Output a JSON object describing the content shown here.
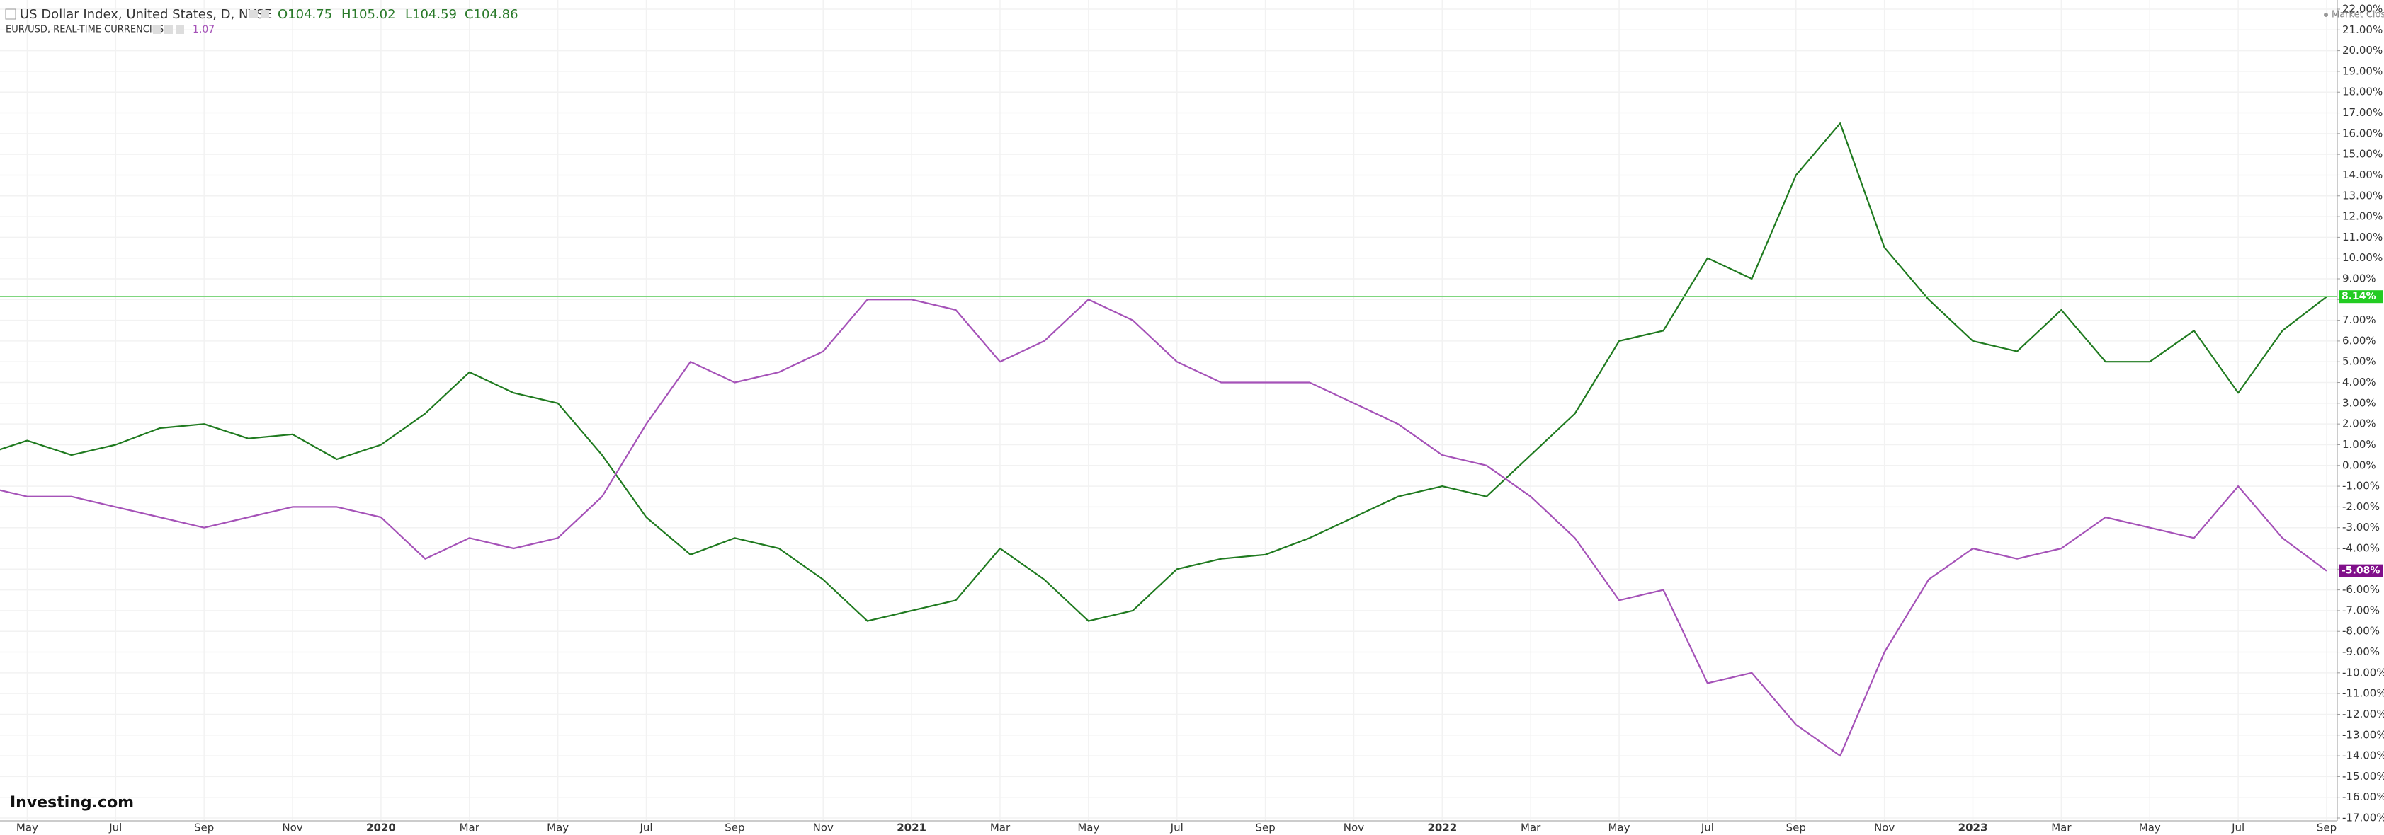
{
  "chart_data": {
    "type": "line",
    "title": "US Dollar Index, United States, D, NYSE",
    "ohlc": [
      "O104.75",
      "H105.02",
      "L104.59",
      "C104.86"
    ],
    "compare_title": "EUR/USD, REAL-TIME CURRENCIES",
    "compare_last": "1.07",
    "status": "Market Closed",
    "logo": "Investing.com",
    "x": [
      "2019-04",
      "2019-05",
      "2019-06",
      "2019-07",
      "2019-08",
      "2019-09",
      "2019-10",
      "2019-11",
      "2019-12",
      "2020-01",
      "2020-02",
      "2020-03",
      "2020-04",
      "2020-05",
      "2020-06",
      "2020-07",
      "2020-08",
      "2020-09",
      "2020-10",
      "2020-11",
      "2020-12",
      "2021-01",
      "2021-02",
      "2021-03",
      "2021-04",
      "2021-05",
      "2021-06",
      "2021-07",
      "2021-08",
      "2021-09",
      "2021-10",
      "2021-11",
      "2021-12",
      "2022-01",
      "2022-02",
      "2022-03",
      "2022-04",
      "2022-05",
      "2022-06",
      "2022-07",
      "2022-08",
      "2022-09",
      "2022-10",
      "2022-11",
      "2022-12",
      "2023-01",
      "2023-02",
      "2023-03",
      "2023-04",
      "2023-05",
      "2023-06",
      "2023-07",
      "2023-08",
      "2023-09"
    ],
    "series": [
      {
        "name": "US Dollar Index",
        "color": "#1f7a1f",
        "last_label": "8.14%",
        "values": [
          0.5,
          1.2,
          0.5,
          1.0,
          1.8,
          2.0,
          1.3,
          1.5,
          0.3,
          1.0,
          2.5,
          4.5,
          3.5,
          3.0,
          0.5,
          -2.5,
          -4.3,
          -3.5,
          -4.0,
          -5.5,
          -7.5,
          -7.0,
          -6.5,
          -4.0,
          -5.5,
          -7.5,
          -7.0,
          -5.0,
          -4.5,
          -4.3,
          -3.5,
          -2.5,
          -1.5,
          -1.0,
          -1.5,
          0.5,
          2.5,
          6.0,
          6.5,
          10.0,
          9.0,
          14.0,
          16.5,
          10.5,
          8.0,
          6.0,
          5.5,
          7.5,
          5.0,
          5.0,
          6.5,
          3.5,
          6.5,
          8.14
        ]
      },
      {
        "name": "EUR/USD",
        "color": "#a552b8",
        "last_label": "-5.08%",
        "values": [
          -1.0,
          -1.5,
          -1.5,
          -2.0,
          -2.5,
          -3.0,
          -2.5,
          -2.0,
          -2.0,
          -2.5,
          -4.5,
          -3.5,
          -4.0,
          -3.5,
          -1.5,
          2.0,
          5.0,
          4.0,
          4.5,
          5.5,
          8.0,
          8.0,
          7.5,
          5.0,
          6.0,
          8.0,
          7.0,
          5.0,
          4.0,
          4.0,
          4.0,
          3.0,
          2.0,
          0.5,
          0.0,
          -1.5,
          -3.5,
          -6.5,
          -6.0,
          -10.5,
          -10.0,
          -12.5,
          -14.0,
          -9.0,
          -5.5,
          -4.0,
          -4.5,
          -4.0,
          -2.5,
          -3.0,
          -3.5,
          -1.0,
          -3.5,
          -5.08
        ]
      }
    ],
    "xlim": [
      "2019-04",
      "2023-09"
    ],
    "xticks": [
      {
        "value": "2019-05",
        "label": "May"
      },
      {
        "value": "2019-07",
        "label": "Jul"
      },
      {
        "value": "2019-09",
        "label": "Sep"
      },
      {
        "value": "2019-11",
        "label": "Nov"
      },
      {
        "value": "2020-01",
        "label": "2020"
      },
      {
        "value": "2020-03",
        "label": "Mar"
      },
      {
        "value": "2020-05",
        "label": "May"
      },
      {
        "value": "2020-07",
        "label": "Jul"
      },
      {
        "value": "2020-09",
        "label": "Sep"
      },
      {
        "value": "2020-11",
        "label": "Nov"
      },
      {
        "value": "2021-01",
        "label": "2021"
      },
      {
        "value": "2021-03",
        "label": "Mar"
      },
      {
        "value": "2021-05",
        "label": "May"
      },
      {
        "value": "2021-07",
        "label": "Jul"
      },
      {
        "value": "2021-09",
        "label": "Sep"
      },
      {
        "value": "2021-11",
        "label": "Nov"
      },
      {
        "value": "2022-01",
        "label": "2022"
      },
      {
        "value": "2022-03",
        "label": "Mar"
      },
      {
        "value": "2022-05",
        "label": "May"
      },
      {
        "value": "2022-07",
        "label": "Jul"
      },
      {
        "value": "2022-09",
        "label": "Sep"
      },
      {
        "value": "2022-11",
        "label": "Nov"
      },
      {
        "value": "2023-01",
        "label": "2023"
      },
      {
        "value": "2023-03",
        "label": "Mar"
      },
      {
        "value": "2023-05",
        "label": "May"
      },
      {
        "value": "2023-07",
        "label": "Jul"
      },
      {
        "value": "2023-09",
        "label": "Sep"
      }
    ],
    "ylim": [
      -17,
      22
    ],
    "yticks": [
      {
        "value": 22,
        "label": "22.00%"
      },
      {
        "value": 21,
        "label": "21.00%"
      },
      {
        "value": 20,
        "label": "20.00%"
      },
      {
        "value": 19,
        "label": "19.00%"
      },
      {
        "value": 18,
        "label": "18.00%"
      },
      {
        "value": 17,
        "label": "17.00%"
      },
      {
        "value": 16,
        "label": "16.00%"
      },
      {
        "value": 15,
        "label": "15.00%"
      },
      {
        "value": 14,
        "label": "14.00%"
      },
      {
        "value": 13,
        "label": "13.00%"
      },
      {
        "value": 12,
        "label": "12.00%"
      },
      {
        "value": 11,
        "label": "11.00%"
      },
      {
        "value": 10,
        "label": "10.00%"
      },
      {
        "value": 9,
        "label": "9.00%"
      },
      {
        "value": 8,
        "label": "8.00%"
      },
      {
        "value": 7,
        "label": "7.00%"
      },
      {
        "value": 6,
        "label": "6.00%"
      },
      {
        "value": 5,
        "label": "5.00%"
      },
      {
        "value": 4,
        "label": "4.00%"
      },
      {
        "value": 3,
        "label": "3.00%"
      },
      {
        "value": 2,
        "label": "2.00%"
      },
      {
        "value": 1,
        "label": "1.00%"
      },
      {
        "value": 0,
        "label": "0.00%"
      },
      {
        "value": -1,
        "label": "-1.00%"
      },
      {
        "value": -2,
        "label": "-2.00%"
      },
      {
        "value": -3,
        "label": "-3.00%"
      },
      {
        "value": -4,
        "label": "-4.00%"
      },
      {
        "value": -5,
        "label": "-5.00%"
      },
      {
        "value": -6,
        "label": "-6.00%"
      },
      {
        "value": -7,
        "label": "-7.00%"
      },
      {
        "value": -8,
        "label": "-8.00%"
      },
      {
        "value": -9,
        "label": "-9.00%"
      },
      {
        "value": -10,
        "label": "-10.00%"
      },
      {
        "value": -11,
        "label": "-11.00%"
      },
      {
        "value": -12,
        "label": "-12.00%"
      },
      {
        "value": -13,
        "label": "-13.00%"
      },
      {
        "value": -14,
        "label": "-14.00%"
      },
      {
        "value": -15,
        "label": "-15.00%"
      },
      {
        "value": -16,
        "label": "-16.00%"
      },
      {
        "value": -17,
        "label": "-17.00%"
      }
    ],
    "grid": true
  }
}
